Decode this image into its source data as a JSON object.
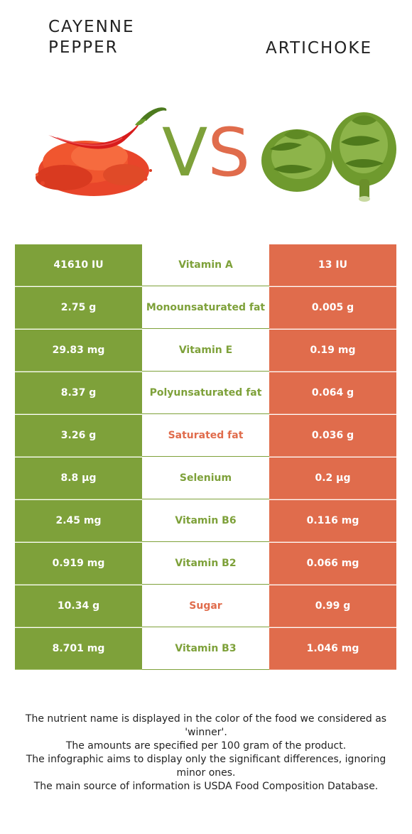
{
  "header": {
    "left_title_line1": "CAYENNE",
    "left_title_line2": "PEPPER",
    "right_title": "ARTICHOKE",
    "vs_v": "V",
    "vs_s": "S"
  },
  "colors": {
    "green": "#7ea13a",
    "red": "#e06c4c"
  },
  "rows": [
    {
      "left": "41610 IU",
      "nutrient": "Vitamin A",
      "right": "13 IU",
      "winner": "green"
    },
    {
      "left": "2.75 g",
      "nutrient": "Monounsaturated fat",
      "right": "0.005 g",
      "winner": "green"
    },
    {
      "left": "29.83 mg",
      "nutrient": "Vitamin E",
      "right": "0.19 mg",
      "winner": "green"
    },
    {
      "left": "8.37 g",
      "nutrient": "Polyunsaturated fat",
      "right": "0.064 g",
      "winner": "green"
    },
    {
      "left": "3.26 g",
      "nutrient": "Saturated fat",
      "right": "0.036 g",
      "winner": "red"
    },
    {
      "left": "8.8 µg",
      "nutrient": "Selenium",
      "right": "0.2 µg",
      "winner": "green"
    },
    {
      "left": "2.45 mg",
      "nutrient": "Vitamin B6",
      "right": "0.116 mg",
      "winner": "green"
    },
    {
      "left": "0.919 mg",
      "nutrient": "Vitamin B2",
      "right": "0.066 mg",
      "winner": "green"
    },
    {
      "left": "10.34 g",
      "nutrient": "Sugar",
      "right": "0.99 g",
      "winner": "red"
    },
    {
      "left": "8.701 mg",
      "nutrient": "Vitamin B3",
      "right": "1.046 mg",
      "winner": "green"
    }
  ],
  "footer": {
    "line1": "The nutrient name is displayed in the color of the food we considered as 'winner'.",
    "line2": "The amounts are specified per 100 gram of the product.",
    "line3": "The infographic aims to display only the significant differences, ignoring minor ones.",
    "line4": "The main source of information is USDA Food Composition Database."
  }
}
